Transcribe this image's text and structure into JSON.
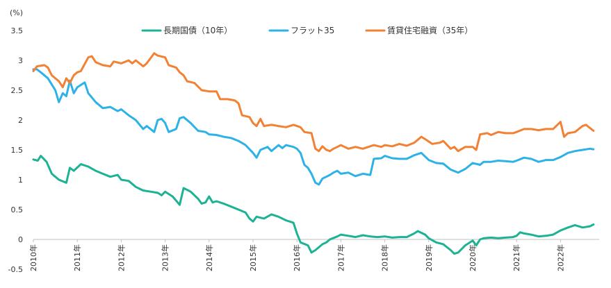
{
  "chart_data": {
    "type": "line",
    "title": "",
    "xlabel": "",
    "ylabel": "(%)",
    "ylim": [
      -0.5,
      3.5
    ],
    "yticks": [
      "3.5",
      "3",
      "2.5",
      "2",
      "1.5",
      "1",
      "0.5",
      "0",
      "-0.5"
    ],
    "xticks": [
      "2010年",
      "2011年",
      "2012年",
      "2013年",
      "2014年",
      "2015年",
      "2016年",
      "2017年",
      "2018年",
      "2019年",
      "2020年",
      "2021年",
      "2022年"
    ],
    "xlim": [
      2010.0,
      2022.75
    ],
    "grid": false,
    "legend_position": "top",
    "series": [
      {
        "name": "長期国債（10年）",
        "color": "#1bb394",
        "points": [
          [
            2010.0,
            1.34
          ],
          [
            2010.1,
            1.32
          ],
          [
            2010.17,
            1.4
          ],
          [
            2010.3,
            1.3
          ],
          [
            2010.42,
            1.1
          ],
          [
            2010.58,
            1.0
          ],
          [
            2010.75,
            0.95
          ],
          [
            2010.83,
            1.2
          ],
          [
            2010.92,
            1.15
          ],
          [
            2011.08,
            1.26
          ],
          [
            2011.25,
            1.22
          ],
          [
            2011.42,
            1.15
          ],
          [
            2011.58,
            1.1
          ],
          [
            2011.75,
            1.05
          ],
          [
            2011.92,
            1.08
          ],
          [
            2012.0,
            1.0
          ],
          [
            2012.17,
            0.98
          ],
          [
            2012.33,
            0.88
          ],
          [
            2012.5,
            0.82
          ],
          [
            2012.67,
            0.8
          ],
          [
            2012.83,
            0.78
          ],
          [
            2012.92,
            0.74
          ],
          [
            2013.0,
            0.8
          ],
          [
            2013.17,
            0.72
          ],
          [
            2013.33,
            0.58
          ],
          [
            2013.42,
            0.86
          ],
          [
            2013.58,
            0.8
          ],
          [
            2013.75,
            0.68
          ],
          [
            2013.83,
            0.6
          ],
          [
            2013.92,
            0.62
          ],
          [
            2014.0,
            0.72
          ],
          [
            2014.08,
            0.62
          ],
          [
            2014.17,
            0.64
          ],
          [
            2014.33,
            0.6
          ],
          [
            2014.5,
            0.55
          ],
          [
            2014.67,
            0.5
          ],
          [
            2014.83,
            0.45
          ],
          [
            2014.92,
            0.35
          ],
          [
            2015.0,
            0.3
          ],
          [
            2015.08,
            0.38
          ],
          [
            2015.25,
            0.35
          ],
          [
            2015.42,
            0.42
          ],
          [
            2015.58,
            0.38
          ],
          [
            2015.75,
            0.32
          ],
          [
            2015.92,
            0.28
          ],
          [
            2016.0,
            0.1
          ],
          [
            2016.08,
            -0.05
          ],
          [
            2016.25,
            -0.1
          ],
          [
            2016.33,
            -0.22
          ],
          [
            2016.42,
            -0.18
          ],
          [
            2016.58,
            -0.08
          ],
          [
            2016.67,
            -0.05
          ],
          [
            2016.75,
            0.0
          ],
          [
            2016.92,
            0.05
          ],
          [
            2017.0,
            0.08
          ],
          [
            2017.17,
            0.06
          ],
          [
            2017.33,
            0.04
          ],
          [
            2017.5,
            0.07
          ],
          [
            2017.67,
            0.05
          ],
          [
            2017.83,
            0.04
          ],
          [
            2018.0,
            0.05
          ],
          [
            2018.17,
            0.03
          ],
          [
            2018.33,
            0.04
          ],
          [
            2018.5,
            0.04
          ],
          [
            2018.67,
            0.1
          ],
          [
            2018.75,
            0.14
          ],
          [
            2018.92,
            0.08
          ],
          [
            2019.0,
            0.02
          ],
          [
            2019.17,
            -0.05
          ],
          [
            2019.33,
            -0.08
          ],
          [
            2019.5,
            -0.18
          ],
          [
            2019.58,
            -0.24
          ],
          [
            2019.67,
            -0.22
          ],
          [
            2019.83,
            -0.1
          ],
          [
            2020.0,
            -0.02
          ],
          [
            2020.08,
            -0.1
          ],
          [
            2020.17,
            0.0
          ],
          [
            2020.25,
            0.02
          ],
          [
            2020.42,
            0.03
          ],
          [
            2020.58,
            0.02
          ],
          [
            2020.75,
            0.03
          ],
          [
            2020.92,
            0.04
          ],
          [
            2021.0,
            0.06
          ],
          [
            2021.08,
            0.12
          ],
          [
            2021.17,
            0.1
          ],
          [
            2021.33,
            0.08
          ],
          [
            2021.5,
            0.05
          ],
          [
            2021.67,
            0.06
          ],
          [
            2021.83,
            0.08
          ],
          [
            2022.0,
            0.15
          ],
          [
            2022.17,
            0.2
          ],
          [
            2022.33,
            0.24
          ],
          [
            2022.5,
            0.2
          ],
          [
            2022.67,
            0.22
          ],
          [
            2022.75,
            0.25
          ]
        ]
      },
      {
        "name": "フラット35",
        "color": "#2db2e8",
        "points": [
          [
            2010.0,
            2.85
          ],
          [
            2010.08,
            2.85
          ],
          [
            2010.17,
            2.8
          ],
          [
            2010.33,
            2.7
          ],
          [
            2010.5,
            2.5
          ],
          [
            2010.58,
            2.3
          ],
          [
            2010.67,
            2.45
          ],
          [
            2010.75,
            2.4
          ],
          [
            2010.83,
            2.66
          ],
          [
            2010.92,
            2.45
          ],
          [
            2011.0,
            2.55
          ],
          [
            2011.17,
            2.63
          ],
          [
            2011.25,
            2.45
          ],
          [
            2011.42,
            2.3
          ],
          [
            2011.58,
            2.2
          ],
          [
            2011.75,
            2.22
          ],
          [
            2011.92,
            2.15
          ],
          [
            2012.0,
            2.18
          ],
          [
            2012.17,
            2.08
          ],
          [
            2012.33,
            2.0
          ],
          [
            2012.5,
            1.85
          ],
          [
            2012.58,
            1.9
          ],
          [
            2012.75,
            1.8
          ],
          [
            2012.83,
            2.0
          ],
          [
            2012.92,
            2.02
          ],
          [
            2013.0,
            1.95
          ],
          [
            2013.08,
            1.8
          ],
          [
            2013.25,
            1.85
          ],
          [
            2013.33,
            2.03
          ],
          [
            2013.42,
            2.05
          ],
          [
            2013.58,
            1.95
          ],
          [
            2013.75,
            1.82
          ],
          [
            2013.92,
            1.8
          ],
          [
            2014.0,
            1.76
          ],
          [
            2014.17,
            1.75
          ],
          [
            2014.33,
            1.72
          ],
          [
            2014.5,
            1.7
          ],
          [
            2014.67,
            1.65
          ],
          [
            2014.83,
            1.58
          ],
          [
            2015.0,
            1.45
          ],
          [
            2015.08,
            1.37
          ],
          [
            2015.17,
            1.5
          ],
          [
            2015.33,
            1.55
          ],
          [
            2015.42,
            1.48
          ],
          [
            2015.58,
            1.58
          ],
          [
            2015.67,
            1.53
          ],
          [
            2015.75,
            1.58
          ],
          [
            2015.92,
            1.55
          ],
          [
            2016.0,
            1.52
          ],
          [
            2016.08,
            1.45
          ],
          [
            2016.17,
            1.25
          ],
          [
            2016.25,
            1.2
          ],
          [
            2016.33,
            1.1
          ],
          [
            2016.42,
            0.95
          ],
          [
            2016.5,
            0.92
          ],
          [
            2016.58,
            1.02
          ],
          [
            2016.67,
            1.05
          ],
          [
            2016.75,
            1.08
          ],
          [
            2016.83,
            1.12
          ],
          [
            2016.92,
            1.15
          ],
          [
            2017.0,
            1.1
          ],
          [
            2017.17,
            1.12
          ],
          [
            2017.33,
            1.06
          ],
          [
            2017.5,
            1.1
          ],
          [
            2017.67,
            1.08
          ],
          [
            2017.75,
            1.35
          ],
          [
            2017.92,
            1.36
          ],
          [
            2018.0,
            1.4
          ],
          [
            2018.17,
            1.36
          ],
          [
            2018.33,
            1.35
          ],
          [
            2018.5,
            1.35
          ],
          [
            2018.67,
            1.41
          ],
          [
            2018.83,
            1.45
          ],
          [
            2019.0,
            1.33
          ],
          [
            2019.17,
            1.28
          ],
          [
            2019.33,
            1.27
          ],
          [
            2019.5,
            1.17
          ],
          [
            2019.67,
            1.12
          ],
          [
            2019.83,
            1.18
          ],
          [
            2020.0,
            1.28
          ],
          [
            2020.17,
            1.25
          ],
          [
            2020.25,
            1.3
          ],
          [
            2020.42,
            1.3
          ],
          [
            2020.58,
            1.32
          ],
          [
            2020.75,
            1.31
          ],
          [
            2020.92,
            1.3
          ],
          [
            2021.0,
            1.32
          ],
          [
            2021.17,
            1.37
          ],
          [
            2021.33,
            1.35
          ],
          [
            2021.5,
            1.3
          ],
          [
            2021.67,
            1.33
          ],
          [
            2021.83,
            1.33
          ],
          [
            2022.0,
            1.38
          ],
          [
            2022.17,
            1.45
          ],
          [
            2022.33,
            1.48
          ],
          [
            2022.5,
            1.5
          ],
          [
            2022.67,
            1.52
          ],
          [
            2022.75,
            1.51
          ]
        ]
      },
      {
        "name": "賃貸住宅融資（35年）",
        "color": "#f28133",
        "points": [
          [
            2010.0,
            2.82
          ],
          [
            2010.08,
            2.9
          ],
          [
            2010.25,
            2.92
          ],
          [
            2010.33,
            2.88
          ],
          [
            2010.42,
            2.75
          ],
          [
            2010.58,
            2.65
          ],
          [
            2010.67,
            2.55
          ],
          [
            2010.75,
            2.7
          ],
          [
            2010.83,
            2.62
          ],
          [
            2010.92,
            2.75
          ],
          [
            2011.0,
            2.8
          ],
          [
            2011.08,
            2.82
          ],
          [
            2011.25,
            3.05
          ],
          [
            2011.33,
            3.07
          ],
          [
            2011.42,
            2.97
          ],
          [
            2011.58,
            2.92
          ],
          [
            2011.75,
            2.9
          ],
          [
            2011.83,
            2.98
          ],
          [
            2012.0,
            2.95
          ],
          [
            2012.17,
            3.0
          ],
          [
            2012.25,
            2.95
          ],
          [
            2012.33,
            3.0
          ],
          [
            2012.5,
            2.9
          ],
          [
            2012.58,
            2.95
          ],
          [
            2012.75,
            3.12
          ],
          [
            2012.83,
            3.08
          ],
          [
            2013.0,
            3.05
          ],
          [
            2013.08,
            2.92
          ],
          [
            2013.25,
            2.88
          ],
          [
            2013.33,
            2.8
          ],
          [
            2013.42,
            2.75
          ],
          [
            2013.5,
            2.65
          ],
          [
            2013.67,
            2.62
          ],
          [
            2013.83,
            2.5
          ],
          [
            2014.0,
            2.48
          ],
          [
            2014.17,
            2.48
          ],
          [
            2014.25,
            2.35
          ],
          [
            2014.42,
            2.35
          ],
          [
            2014.58,
            2.33
          ],
          [
            2014.67,
            2.28
          ],
          [
            2014.75,
            2.08
          ],
          [
            2014.92,
            2.05
          ],
          [
            2015.0,
            1.95
          ],
          [
            2015.08,
            1.9
          ],
          [
            2015.17,
            2.02
          ],
          [
            2015.25,
            1.9
          ],
          [
            2015.42,
            1.92
          ],
          [
            2015.58,
            1.9
          ],
          [
            2015.75,
            1.88
          ],
          [
            2015.92,
            1.92
          ],
          [
            2016.0,
            1.9
          ],
          [
            2016.08,
            1.88
          ],
          [
            2016.17,
            1.8
          ],
          [
            2016.33,
            1.78
          ],
          [
            2016.42,
            1.52
          ],
          [
            2016.5,
            1.48
          ],
          [
            2016.58,
            1.56
          ],
          [
            2016.67,
            1.5
          ],
          [
            2016.75,
            1.48
          ],
          [
            2016.83,
            1.52
          ],
          [
            2016.92,
            1.55
          ],
          [
            2017.0,
            1.58
          ],
          [
            2017.17,
            1.52
          ],
          [
            2017.33,
            1.55
          ],
          [
            2017.5,
            1.52
          ],
          [
            2017.67,
            1.56
          ],
          [
            2017.75,
            1.58
          ],
          [
            2017.92,
            1.55
          ],
          [
            2018.0,
            1.58
          ],
          [
            2018.17,
            1.56
          ],
          [
            2018.33,
            1.6
          ],
          [
            2018.5,
            1.57
          ],
          [
            2018.67,
            1.62
          ],
          [
            2018.83,
            1.72
          ],
          [
            2018.92,
            1.68
          ],
          [
            2019.08,
            1.6
          ],
          [
            2019.25,
            1.62
          ],
          [
            2019.33,
            1.65
          ],
          [
            2019.5,
            1.52
          ],
          [
            2019.58,
            1.55
          ],
          [
            2019.67,
            1.48
          ],
          [
            2019.83,
            1.55
          ],
          [
            2020.0,
            1.55
          ],
          [
            2020.08,
            1.5
          ],
          [
            2020.17,
            1.76
          ],
          [
            2020.33,
            1.78
          ],
          [
            2020.42,
            1.75
          ],
          [
            2020.58,
            1.8
          ],
          [
            2020.75,
            1.78
          ],
          [
            2020.92,
            1.78
          ],
          [
            2021.0,
            1.8
          ],
          [
            2021.17,
            1.85
          ],
          [
            2021.33,
            1.85
          ],
          [
            2021.5,
            1.83
          ],
          [
            2021.67,
            1.85
          ],
          [
            2021.83,
            1.85
          ],
          [
            2022.0,
            1.97
          ],
          [
            2022.08,
            1.72
          ],
          [
            2022.17,
            1.78
          ],
          [
            2022.33,
            1.8
          ],
          [
            2022.5,
            1.9
          ],
          [
            2022.58,
            1.92
          ],
          [
            2022.75,
            1.82
          ]
        ]
      }
    ]
  }
}
